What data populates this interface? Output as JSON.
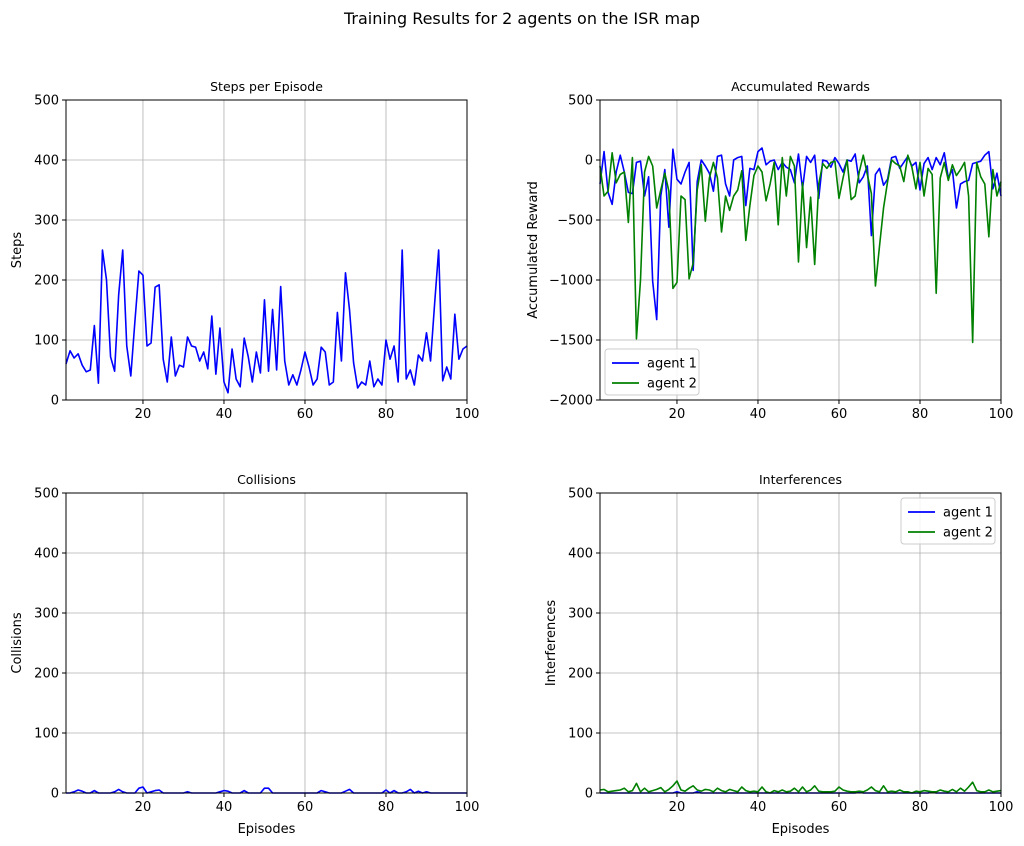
{
  "figure": {
    "title": "Training Results for 2 agents on the ISR map"
  },
  "colors": {
    "agent1": "#0000ff",
    "agent2": "#008000",
    "grid": "#b0b0b0"
  },
  "chart_data": [
    {
      "type": "line",
      "title": "Steps per Episode",
      "xlabel": "",
      "ylabel": "Steps",
      "xlim": [
        1,
        100
      ],
      "ylim": [
        0,
        500
      ],
      "xticks": [
        20,
        40,
        60,
        80,
        100
      ],
      "yticks": [
        0,
        100,
        200,
        300,
        400,
        500
      ],
      "grid": true,
      "legend": null,
      "series": [
        {
          "color": "#0000ff",
          "values": [
            60,
            82,
            70,
            77,
            58,
            47,
            50,
            124,
            28,
            250,
            200,
            72,
            48,
            175,
            250,
            90,
            40,
            130,
            215,
            208,
            90,
            95,
            188,
            192,
            68,
            30,
            105,
            40,
            58,
            55,
            105,
            90,
            88,
            65,
            80,
            52,
            140,
            43,
            120,
            30,
            12,
            85,
            35,
            22,
            103,
            72,
            30,
            80,
            45,
            167,
            48,
            151,
            50,
            189,
            65,
            25,
            42,
            25,
            50,
            80,
            55,
            25,
            35,
            88,
            80,
            25,
            30,
            146,
            65,
            212,
            150,
            62,
            20,
            30,
            25,
            65,
            22,
            35,
            25,
            100,
            68,
            90,
            30,
            250,
            35,
            50,
            25,
            75,
            65,
            112,
            65,
            160,
            250,
            32,
            55,
            35,
            143,
            68,
            85,
            90
          ]
        }
      ]
    },
    {
      "type": "line",
      "title": "Accumulated Rewards",
      "xlabel": "",
      "ylabel": "Accumulated Reward",
      "xlim": [
        1,
        100
      ],
      "ylim": [
        -2000,
        500
      ],
      "xticks": [
        20,
        40,
        60,
        80,
        100
      ],
      "yticks": [
        -2000,
        -1500,
        -1000,
        -500,
        0,
        500
      ],
      "grid": true,
      "legend": "lower-left",
      "series": [
        {
          "name": "agent 1",
          "color": "#0000ff",
          "values": [
            -200,
            70,
            -270,
            -370,
            -100,
            40,
            -100,
            -270,
            -280,
            -20,
            -10,
            -300,
            -140,
            -1010,
            -1330,
            -300,
            -80,
            -560,
            90,
            -160,
            -200,
            -100,
            -20,
            -920,
            -180,
            0,
            -50,
            -110,
            -260,
            30,
            40,
            -200,
            -300,
            0,
            20,
            30,
            -380,
            -70,
            -80,
            70,
            100,
            -40,
            -10,
            0,
            -80,
            -20,
            -60,
            -80,
            -190,
            50,
            -240,
            30,
            -20,
            40,
            -320,
            0,
            -10,
            -60,
            20,
            -30,
            -100,
            0,
            -10,
            50,
            -190,
            -140,
            -50,
            -630,
            -120,
            -70,
            -210,
            -160,
            20,
            30,
            -70,
            -20,
            30,
            -50,
            -20,
            -250,
            -30,
            20,
            -80,
            20,
            -40,
            60,
            -150,
            -80,
            -400,
            -200,
            -180,
            -170,
            -30,
            -20,
            -10,
            40,
            70,
            -240,
            -110,
            -300
          ]
        },
        {
          "name": "agent 2",
          "color": "#008000",
          "values": [
            -50,
            -300,
            -260,
            60,
            -190,
            -120,
            -100,
            -520,
            20,
            -1490,
            -1000,
            -100,
            30,
            -50,
            -400,
            -250,
            -110,
            -260,
            -1070,
            -1020,
            -300,
            -330,
            -990,
            -860,
            -250,
            -40,
            -510,
            -150,
            -20,
            -150,
            -600,
            -300,
            -420,
            -300,
            -250,
            -90,
            -670,
            -380,
            -130,
            -50,
            -100,
            -340,
            -200,
            -20,
            -540,
            20,
            -300,
            30,
            -50,
            -850,
            -190,
            -730,
            -310,
            -870,
            -200,
            -30,
            -70,
            -20,
            -10,
            -320,
            -150,
            0,
            -330,
            -300,
            -100,
            40,
            -120,
            -280,
            -1050,
            -720,
            -400,
            -180,
            0,
            -30,
            -50,
            -180,
            40,
            -60,
            -240,
            -20,
            -300,
            -70,
            -120,
            -1110,
            -150,
            -20,
            -170,
            -40,
            -130,
            -80,
            -20,
            -300,
            -1520,
            -20,
            -140,
            -200,
            -640,
            -80,
            -300,
            -180
          ]
        }
      ]
    },
    {
      "type": "line",
      "title": "Collisions",
      "xlabel": "Episodes",
      "ylabel": "Collisions",
      "xlim": [
        1,
        100
      ],
      "ylim": [
        0,
        500
      ],
      "xticks": [
        20,
        40,
        60,
        80,
        100
      ],
      "yticks": [
        0,
        100,
        200,
        300,
        400,
        500
      ],
      "grid": true,
      "legend": null,
      "series": [
        {
          "color": "#0000ff",
          "values": [
            0,
            0,
            2,
            5,
            3,
            0,
            0,
            4,
            0,
            0,
            0,
            0,
            2,
            6,
            2,
            0,
            0,
            0,
            8,
            10,
            0,
            2,
            4,
            5,
            0,
            0,
            0,
            0,
            0,
            0,
            2,
            0,
            0,
            0,
            0,
            0,
            0,
            0,
            2,
            4,
            3,
            0,
            0,
            0,
            4,
            0,
            0,
            0,
            0,
            8,
            8,
            0,
            0,
            0,
            0,
            0,
            0,
            0,
            0,
            0,
            0,
            0,
            0,
            4,
            2,
            0,
            0,
            0,
            0,
            3,
            6,
            0,
            0,
            0,
            0,
            0,
            0,
            0,
            0,
            5,
            0,
            4,
            0,
            0,
            2,
            6,
            0,
            3,
            0,
            2,
            0,
            0,
            0,
            0,
            0,
            0,
            0,
            0,
            0,
            0
          ]
        }
      ]
    },
    {
      "type": "line",
      "title": "Interferences",
      "xlabel": "Episodes",
      "ylabel": "Interferences",
      "xlim": [
        1,
        100
      ],
      "ylim": [
        0,
        500
      ],
      "xticks": [
        20,
        40,
        60,
        80,
        100
      ],
      "yticks": [
        0,
        100,
        200,
        300,
        400,
        500
      ],
      "grid": true,
      "legend": "upper-right",
      "series": [
        {
          "name": "agent 1",
          "color": "#0000ff",
          "values": [
            0,
            0,
            0,
            0,
            0,
            0,
            0,
            0,
            0,
            0,
            0,
            0,
            0,
            0,
            0,
            0,
            0,
            0,
            0,
            2,
            0,
            0,
            0,
            0,
            2,
            0,
            0,
            0,
            0,
            0,
            0,
            0,
            0,
            0,
            0,
            0,
            0,
            0,
            0,
            0,
            0,
            0,
            0,
            0,
            0,
            0,
            0,
            0,
            0,
            0,
            0,
            0,
            0,
            0,
            0,
            0,
            0,
            0,
            0,
            0,
            0,
            0,
            0,
            0,
            2,
            0,
            0,
            0,
            0,
            0,
            0,
            0,
            0,
            0,
            0,
            0,
            0,
            0,
            0,
            0,
            0,
            0,
            2,
            0,
            0,
            0,
            0,
            0,
            0,
            0,
            0,
            0,
            0,
            0,
            0,
            0,
            0,
            0,
            0,
            0
          ]
        },
        {
          "name": "agent 2",
          "color": "#008000",
          "values": [
            5,
            6,
            2,
            3,
            4,
            5,
            8,
            2,
            4,
            16,
            2,
            8,
            2,
            4,
            6,
            9,
            2,
            6,
            12,
            20,
            5,
            3,
            8,
            12,
            5,
            3,
            6,
            5,
            2,
            8,
            4,
            2,
            6,
            4,
            2,
            10,
            4,
            2,
            3,
            2,
            10,
            2,
            0,
            4,
            2,
            5,
            2,
            3,
            8,
            2,
            10,
            2,
            5,
            12,
            3,
            2,
            2,
            2,
            3,
            10,
            5,
            3,
            2,
            2,
            3,
            2,
            5,
            10,
            4,
            2,
            12,
            2,
            3,
            2,
            5,
            2,
            2,
            0,
            3,
            2,
            4,
            3,
            2,
            2,
            5,
            3,
            2,
            6,
            2,
            8,
            3,
            10,
            18,
            4,
            2,
            2,
            5,
            2,
            3,
            4
          ]
        }
      ]
    }
  ]
}
